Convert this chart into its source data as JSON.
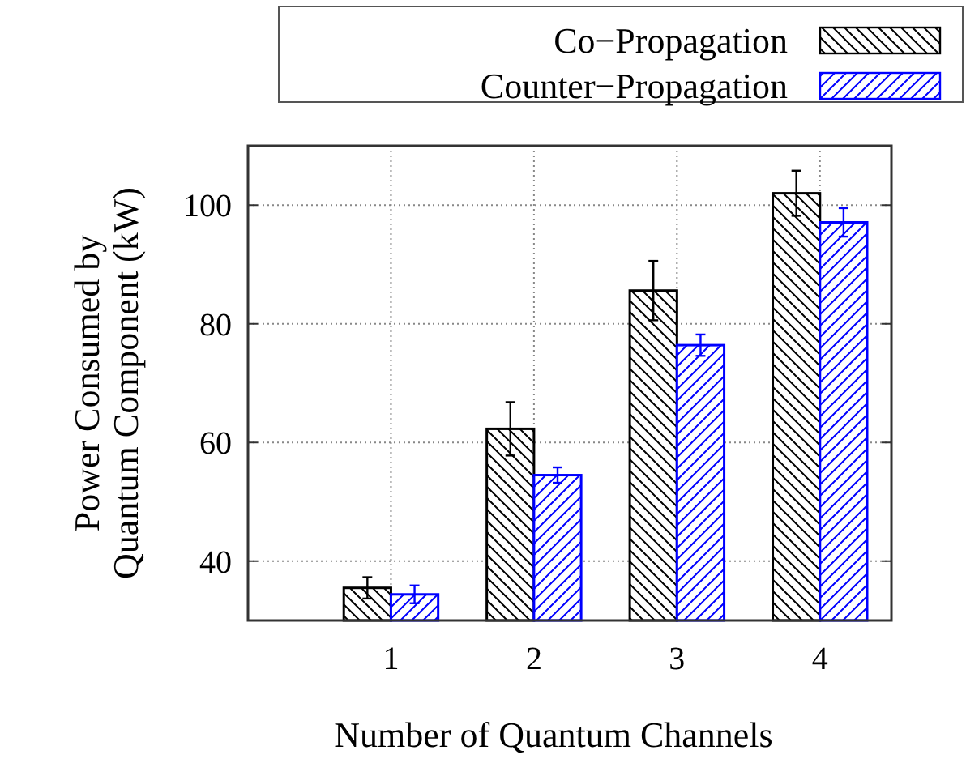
{
  "chart_data": {
    "type": "bar",
    "xlabel": "Number of Quantum Channels",
    "ylabel": "Power Consumed by\nQuantum Component (kW)",
    "categories": [
      "1",
      "2",
      "3",
      "4"
    ],
    "series": [
      {
        "name": "Co−Propagation",
        "color": "#000000",
        "values": [
          35.5,
          62.3,
          85.6,
          102
        ],
        "errors": [
          1.8,
          4.5,
          5,
          3.8
        ]
      },
      {
        "name": "Counter−Propagation",
        "color": "#0000ff",
        "values": [
          34.4,
          54.5,
          76.4,
          97.1
        ],
        "errors": [
          1.5,
          1.3,
          1.8,
          2.4
        ]
      }
    ],
    "ylim": [
      30,
      110
    ],
    "yticks": [
      40,
      60,
      80,
      100
    ],
    "grid": true,
    "legend": "top"
  }
}
